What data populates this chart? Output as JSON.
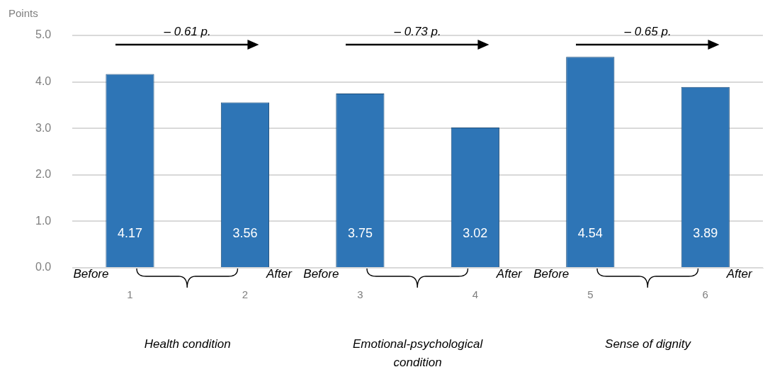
{
  "chart_data": {
    "type": "bar",
    "ylabel": "Points",
    "categories": [
      "1",
      "2",
      "3",
      "4",
      "5",
      "6"
    ],
    "values": [
      4.17,
      3.56,
      3.75,
      3.02,
      4.54,
      3.89
    ],
    "color": "#2e75b6",
    "ylim": [
      0,
      5
    ],
    "yticks": [
      {
        "value": 0,
        "label": "0.0"
      },
      {
        "value": 1,
        "label": "1.0"
      },
      {
        "value": 2,
        "label": "2.0"
      },
      {
        "value": 3,
        "label": "3.0"
      },
      {
        "value": 4,
        "label": "4.0"
      },
      {
        "value": 5,
        "label": "5.0"
      }
    ],
    "grid": "y",
    "legend": false,
    "data_labels": true,
    "annotations": [
      "– 0.61 p.",
      "– 0.73 p.",
      "– 0.65 p.",
      {
        "text": "Before",
        "x": "1",
        "y": 0
      },
      {
        "text": "After",
        "x": "2",
        "y": 0
      },
      {
        "text": "Before",
        "x": "3",
        "y": 0
      },
      {
        "text": "After",
        "x": "4",
        "y": 0
      },
      {
        "text": "Before",
        "x": "5",
        "y": 0
      },
      {
        "text": "After",
        "x": "6",
        "y": 0
      },
      "Health condition",
      "Emotional-psychological condition",
      "Sense of dignity"
    ]
  }
}
